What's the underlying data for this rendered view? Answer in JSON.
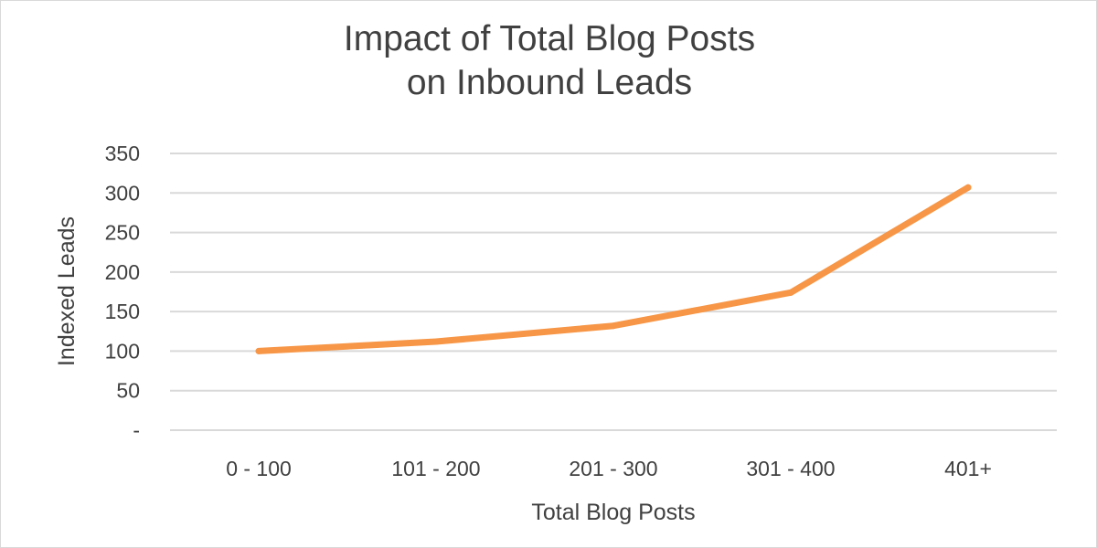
{
  "chart_data": {
    "type": "line",
    "title": [
      "Impact of Total Blog Posts",
      "on Inbound Leads"
    ],
    "xlabel": "Total Blog Posts",
    "ylabel": "Indexed Leads",
    "categories": [
      "0 - 100",
      "101 - 200",
      "201 - 300",
      "301 - 400",
      "401+"
    ],
    "series": [
      {
        "values": [
          100,
          112,
          132,
          174,
          307
        ],
        "color": "#F79646"
      }
    ],
    "ylim": [
      0,
      350
    ],
    "yticks": [
      0,
      50,
      100,
      150,
      200,
      250,
      300,
      350
    ],
    "ytick_labels": [
      "-",
      "50",
      "100",
      "150",
      "200",
      "250",
      "300",
      "350"
    ],
    "grid": true,
    "gridline_color": "#D9D9D9",
    "legend": "none"
  }
}
